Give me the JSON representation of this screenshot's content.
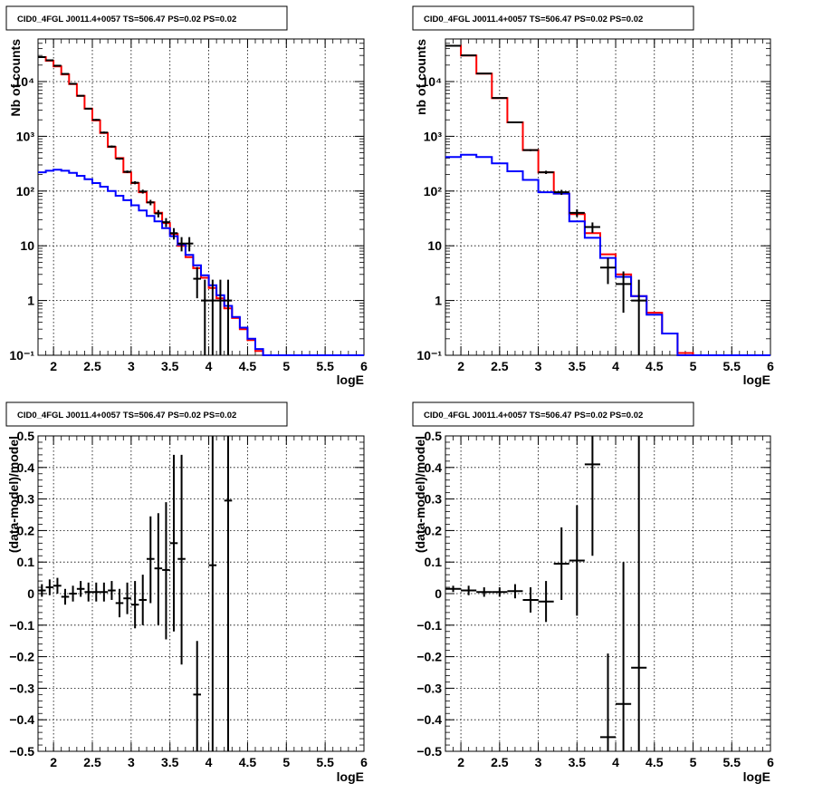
{
  "colors": {
    "model_total": "#ff0000",
    "model_bkg": "#0000ff",
    "data": "#000000",
    "grid": "#000000"
  },
  "chart_data": [
    {
      "id": "p0",
      "type": "line",
      "title": "CID0_4FGL J0011.4+0057 TS=506.47 PS=0.02 PS=0.02",
      "xlabel": "logE",
      "ylabel": "Nb of counts",
      "xlim": [
        1.8,
        6.0
      ],
      "ylim": [
        0.1,
        60000
      ],
      "yscale": "log",
      "grid": true,
      "xticks": [
        2,
        2.5,
        3,
        3.5,
        4,
        4.5,
        5,
        5.5,
        6
      ],
      "xtick_labels": [
        "2",
        "2.5",
        "3",
        "3.5",
        "4",
        "4.5",
        "5",
        "5.5",
        "6"
      ],
      "yticks": [
        0.1,
        1,
        10,
        100,
        1000,
        10000
      ],
      "ytick_labels": [
        "10⁻¹",
        "1",
        "10",
        "10²",
        "10³",
        "10⁴"
      ],
      "series": [
        {
          "kind": "step",
          "color": "#ff0000",
          "edges": [
            1.8,
            1.9,
            2.0,
            2.1,
            2.2,
            2.3,
            2.4,
            2.5,
            2.6,
            2.7,
            2.8,
            2.9,
            3.0,
            3.1,
            3.2,
            3.3,
            3.4,
            3.5,
            3.6,
            3.7,
            3.8,
            3.9,
            4.0,
            4.1,
            4.2,
            4.3,
            4.4,
            4.5,
            4.6,
            4.7,
            4.8,
            4.9,
            5.0,
            5.1,
            5.2,
            5.3,
            5.4,
            5.5,
            5.6,
            5.7,
            5.8,
            5.9,
            6.0
          ],
          "values": [
            28000,
            24000,
            19000,
            13500,
            9000,
            5500,
            3200,
            1950,
            1150,
            640,
            400,
            220,
            140,
            95,
            62,
            40,
            26,
            16.5,
            10,
            6.2,
            3.9,
            2.6,
            1.7,
            1.1,
            0.72,
            0.48,
            0.3,
            0.19,
            0.12,
            0.1,
            0.1,
            0.1,
            0.1,
            0.1,
            0.1,
            0.1,
            0.1,
            0.1,
            0.1,
            0.1,
            0.1,
            0.1
          ]
        },
        {
          "kind": "step",
          "color": "#0000ff",
          "edges": [
            1.8,
            1.9,
            2.0,
            2.1,
            2.2,
            2.3,
            2.4,
            2.5,
            2.6,
            2.7,
            2.8,
            2.9,
            3.0,
            3.1,
            3.2,
            3.3,
            3.4,
            3.5,
            3.6,
            3.7,
            3.8,
            3.9,
            4.0,
            4.1,
            4.2,
            4.3,
            4.4,
            4.5,
            4.6,
            4.7,
            4.8,
            4.9,
            5.0,
            5.1,
            5.2,
            5.3,
            5.4,
            5.5,
            5.6,
            5.7,
            5.8,
            5.9,
            6.0
          ],
          "values": [
            220,
            235,
            245,
            235,
            215,
            190,
            165,
            140,
            120,
            100,
            82,
            68,
            55,
            44,
            35,
            28,
            21,
            15,
            10.5,
            6.8,
            4.4,
            2.9,
            1.9,
            1.25,
            0.8,
            0.5,
            0.32,
            0.2,
            0.13,
            0.1,
            0.1,
            0.1,
            0.1,
            0.1,
            0.1,
            0.1,
            0.1,
            0.1,
            0.1,
            0.1,
            0.1,
            0.1
          ]
        },
        {
          "kind": "points",
          "color": "#000000",
          "x": [
            1.85,
            1.95,
            2.05,
            2.15,
            2.25,
            2.35,
            2.45,
            2.55,
            2.65,
            2.75,
            2.85,
            2.95,
            3.05,
            3.15,
            3.25,
            3.35,
            3.45,
            3.55,
            3.65,
            3.75,
            3.85,
            3.95,
            4.05,
            4.15,
            4.25
          ],
          "y": [
            28000,
            24500,
            19500,
            13800,
            9100,
            5500,
            3200,
            2000,
            1170,
            650,
            390,
            225,
            142,
            98,
            62,
            39,
            27,
            17,
            11,
            11,
            2.5,
            1,
            1,
            1,
            1
          ],
          "ylo": [
            27800,
            24300,
            19300,
            13600,
            8950,
            5380,
            3100,
            1930,
            1120,
            620,
            375,
            213,
            133,
            90,
            55,
            33,
            22,
            13,
            7.9,
            7.9,
            1.1,
            0.1,
            0.1,
            0.1,
            0.1
          ],
          "yhi": [
            28200,
            24700,
            19700,
            14000,
            9250,
            5620,
            3300,
            2070,
            1220,
            680,
            405,
            237,
            151,
            106,
            69,
            45,
            32,
            21,
            14.4,
            14.4,
            4.1,
            2.4,
            2.4,
            2.4,
            2.4
          ],
          "xerr": 0.05
        }
      ]
    },
    {
      "id": "p1",
      "type": "line",
      "title": "CID0_4FGL J0011.4+0057 TS=506.47 PS=0.02 PS=0.02",
      "xlabel": "logE",
      "ylabel": "nb of counts",
      "xlim": [
        1.8,
        6.0
      ],
      "ylim": [
        0.1,
        60000
      ],
      "yscale": "log",
      "grid": true,
      "xticks": [
        2,
        2.5,
        3,
        3.5,
        4,
        4.5,
        5,
        5.5,
        6
      ],
      "xtick_labels": [
        "2",
        "2.5",
        "3",
        "3.5",
        "4",
        "4.5",
        "5",
        "5.5",
        "6"
      ],
      "yticks": [
        0.1,
        1,
        10,
        100,
        1000,
        10000
      ],
      "ytick_labels": [
        "10⁻¹",
        "1",
        "10",
        "10²",
        "10³",
        "10⁴"
      ],
      "series": [
        {
          "kind": "step",
          "color": "#ff0000",
          "edges": [
            1.8,
            2.0,
            2.2,
            2.4,
            2.6,
            2.8,
            3.0,
            3.2,
            3.4,
            3.6,
            3.8,
            4.0,
            4.2,
            4.4,
            4.6,
            4.8,
            5.0,
            5.2,
            5.4,
            5.6,
            5.8,
            6.0
          ],
          "values": [
            45000,
            30000,
            14000,
            5000,
            1800,
            560,
            220,
            90,
            38,
            17,
            7,
            3,
            1.2,
            0.6,
            0.25,
            0.11,
            0.1,
            0.1,
            0.1,
            0.1,
            0.1
          ]
        },
        {
          "kind": "step",
          "color": "#0000ff",
          "edges": [
            1.8,
            2.0,
            2.2,
            2.4,
            2.6,
            2.8,
            3.0,
            3.2,
            3.4,
            3.6,
            3.8,
            4.0,
            4.2,
            4.4,
            4.6,
            4.8,
            5.0,
            5.2,
            5.4,
            5.6,
            5.8,
            6.0
          ],
          "values": [
            420,
            460,
            420,
            320,
            230,
            160,
            95,
            90,
            28,
            14,
            6,
            2.7,
            1.2,
            0.55,
            0.25,
            0.1,
            0.1,
            0.1,
            0.1,
            0.1,
            0.1
          ]
        },
        {
          "kind": "points",
          "color": "#000000",
          "x": [
            1.9,
            2.1,
            2.3,
            2.5,
            2.7,
            2.9,
            3.1,
            3.3,
            3.5,
            3.7,
            3.9,
            4.1,
            4.3
          ],
          "y": [
            45000,
            30000,
            14000,
            5000,
            1800,
            560,
            220,
            95,
            40,
            22,
            4,
            2,
            1
          ],
          "ylo": [
            44790,
            29830,
            13880,
            4930,
            1760,
            536,
            205,
            85,
            33.7,
            17.3,
            2.0,
            0.6,
            0.1
          ],
          "yhi": [
            45210,
            30170,
            14120,
            5070,
            1840,
            584,
            235,
            105,
            46.3,
            26.7,
            6.0,
            3.4,
            2.4
          ],
          "xerr": 0.1
        }
      ]
    },
    {
      "id": "p2",
      "type": "scatter",
      "title": "CID0_4FGL J0011.4+0057 TS=506.47 PS=0.02 PS=0.02",
      "xlabel": "logE",
      "ylabel": "(data-model)/model",
      "xlim": [
        1.8,
        6.0
      ],
      "ylim": [
        -0.5,
        0.5
      ],
      "yscale": "linear",
      "grid": true,
      "xticks": [
        2,
        2.5,
        3,
        3.5,
        4,
        4.5,
        5,
        5.5,
        6
      ],
      "xtick_labels": [
        "2",
        "2.5",
        "3",
        "3.5",
        "4",
        "4.5",
        "5",
        "5.5",
        "6"
      ],
      "yticks": [
        -0.5,
        -0.4,
        -0.3,
        -0.2,
        -0.1,
        0,
        0.1,
        0.2,
        0.3,
        0.4,
        0.5
      ],
      "ytick_labels": [
        "−0.5",
        "−0.4",
        "−0.3",
        "−0.2",
        "−0.1",
        "0",
        "0.1",
        "0.2",
        "0.3",
        "0.4",
        "0.5"
      ],
      "series": [
        {
          "kind": "points",
          "color": "#000000",
          "x": [
            1.85,
            1.95,
            2.05,
            2.15,
            2.25,
            2.35,
            2.45,
            2.55,
            2.65,
            2.75,
            2.85,
            2.95,
            3.05,
            3.15,
            3.25,
            3.35,
            3.45,
            3.55,
            3.65,
            3.85,
            4.05,
            4.25
          ],
          "y": [
            0.01,
            0.02,
            0.025,
            -0.01,
            0.0,
            0.015,
            0.005,
            0.005,
            0.005,
            0.01,
            -0.03,
            -0.015,
            -0.035,
            -0.02,
            0.11,
            0.08,
            0.075,
            0.16,
            0.11,
            -0.32,
            0.09,
            0.295
          ],
          "ylo": [
            -0.01,
            -0.005,
            0.0,
            -0.035,
            -0.025,
            -0.01,
            -0.025,
            -0.025,
            -0.025,
            -0.02,
            -0.075,
            -0.065,
            -0.11,
            -0.1,
            -0.03,
            -0.1,
            -0.145,
            -0.12,
            -0.225,
            -0.5,
            -0.5,
            -0.5
          ],
          "yhi": [
            0.03,
            0.045,
            0.05,
            0.015,
            0.025,
            0.04,
            0.035,
            0.035,
            0.035,
            0.04,
            0.015,
            0.035,
            0.04,
            0.06,
            0.245,
            0.255,
            0.29,
            0.44,
            0.44,
            -0.15,
            0.5,
            0.5
          ],
          "xerr": 0.05
        }
      ]
    },
    {
      "id": "p3",
      "type": "scatter",
      "title": "CID0_4FGL J0011.4+0057 TS=506.47 PS=0.02 PS=0.02",
      "xlabel": "logE",
      "ylabel": "(data-model)/model",
      "xlim": [
        1.8,
        6.0
      ],
      "ylim": [
        -0.5,
        0.5
      ],
      "yscale": "linear",
      "grid": true,
      "xticks": [
        2,
        2.5,
        3,
        3.5,
        4,
        4.5,
        5,
        5.5,
        6
      ],
      "xtick_labels": [
        "2",
        "2.5",
        "3",
        "3.5",
        "4",
        "4.5",
        "5",
        "5.5",
        "6"
      ],
      "yticks": [
        -0.5,
        -0.4,
        -0.3,
        -0.2,
        -0.1,
        0,
        0.1,
        0.2,
        0.3,
        0.4,
        0.5
      ],
      "ytick_labels": [
        "−0.5",
        "−0.4",
        "−0.3",
        "−0.2",
        "−0.1",
        "0",
        "0.1",
        "0.2",
        "0.3",
        "0.4",
        "0.5"
      ],
      "series": [
        {
          "kind": "points",
          "color": "#000000",
          "x": [
            1.9,
            2.1,
            2.3,
            2.5,
            2.7,
            2.9,
            3.1,
            3.3,
            3.5,
            3.7,
            3.9,
            4.1,
            4.3
          ],
          "y": [
            0.015,
            0.01,
            0.005,
            0.005,
            0.008,
            -0.02,
            -0.025,
            0.095,
            0.105,
            0.41,
            -0.455,
            -0.35,
            -0.235
          ],
          "ylo": [
            0.005,
            -0.005,
            -0.01,
            -0.01,
            -0.015,
            -0.06,
            -0.09,
            -0.02,
            -0.07,
            0.12,
            -0.5,
            -0.5,
            -0.5
          ],
          "yhi": [
            0.025,
            0.025,
            0.02,
            0.02,
            0.03,
            0.02,
            0.04,
            0.21,
            0.28,
            0.5,
            -0.19,
            0.1,
            0.5
          ],
          "xerr": 0.1
        }
      ]
    }
  ]
}
